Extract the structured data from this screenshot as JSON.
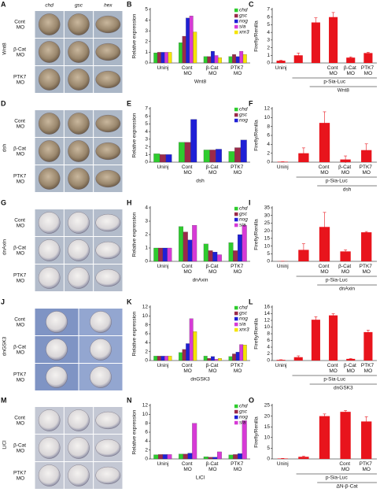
{
  "panels": [
    {
      "letter": "A",
      "side_label": "Wnt8",
      "columns": [
        "chd",
        "gsc",
        "hex"
      ],
      "rows": [
        "Cont MO",
        "β-Cat MO",
        "PTK7 MO"
      ]
    },
    {
      "letter": "D",
      "side_label": "dsh",
      "rows": [
        "Cont MO",
        "β-Cat MO",
        "PTK7 MO"
      ]
    },
    {
      "letter": "G",
      "side_label": "dnAxin",
      "rows": [
        "Cont MO",
        "β-Cat MO",
        "PTK7 MO"
      ]
    },
    {
      "letter": "J",
      "side_label": "dnGSK3",
      "rows": [
        "Cont MO",
        "β-Cat MO",
        "PTK7 MO"
      ]
    },
    {
      "letter": "M",
      "side_label": "LiCl",
      "rows": [
        "Cont MO",
        "β-Cat MO",
        "PTK7 MO"
      ]
    }
  ],
  "chart_data": [
    {
      "type": "bar",
      "title": "B",
      "ylabel": "Relative expression",
      "xlabel": "Wnt8",
      "categories": [
        "Uninj",
        "Cont MO",
        "β-Cat MO",
        "PTK7 MO"
      ],
      "series": [
        {
          "name": "chd",
          "color": "#2ecc2e",
          "values": [
            0.95,
            1.9,
            0.6,
            0.6
          ]
        },
        {
          "name": "gsc",
          "color": "#9b2a4a",
          "values": [
            1.0,
            2.5,
            0.6,
            0.8
          ]
        },
        {
          "name": "nog",
          "color": "#1f1fd6",
          "values": [
            1.0,
            4.2,
            1.1,
            0.6
          ]
        },
        {
          "name": "sia",
          "color": "#d63ad6",
          "values": [
            1.0,
            4.4,
            0.7,
            1.1
          ]
        },
        {
          "name": "xnr3",
          "color": "#f5e400",
          "values": [
            1.0,
            2.9,
            0.5,
            0.8
          ]
        }
      ],
      "ylim": [
        0,
        5
      ],
      "yticks": [
        0,
        1,
        2,
        3,
        4,
        5
      ]
    },
    {
      "type": "bar",
      "title": "C",
      "ylabel": "Firefly/Renilla",
      "categories": [
        "Uninj",
        null,
        null,
        "Cont MO",
        "β-Cat MO",
        "PTK7 MO"
      ],
      "values": [
        0.3,
        1.0,
        5.3,
        6.0,
        0.7,
        1.3
      ],
      "errors": [
        0.05,
        0.3,
        0.6,
        0.6,
        0.1,
        0.1
      ],
      "color": "#e8141c",
      "x_annotations": [
        "p-Sia-Luc",
        "Wnt8"
      ],
      "ylim": [
        0,
        7
      ],
      "yticks": [
        0,
        1,
        2,
        3,
        4,
        5,
        6,
        7
      ]
    },
    {
      "type": "bar",
      "title": "E",
      "ylabel": "Relative expression",
      "xlabel": "dsh",
      "categories": [
        "Uninj",
        "Cont MO",
        "β-Cat MO",
        "PTK7 MO"
      ],
      "series": [
        {
          "name": "chd",
          "color": "#2ecc2e",
          "values": [
            1.1,
            2.6,
            1.6,
            1.4
          ]
        },
        {
          "name": "gsc",
          "color": "#9b2a4a",
          "values": [
            1.0,
            2.6,
            1.6,
            1.9
          ]
        },
        {
          "name": "nog",
          "color": "#1f1fd6",
          "values": [
            1.0,
            5.6,
            1.7,
            2.9
          ]
        }
      ],
      "ylim": [
        0,
        7
      ],
      "yticks": [
        0,
        1,
        2,
        3,
        4,
        5,
        6,
        7
      ]
    },
    {
      "type": "bar",
      "title": "F",
      "ylabel": "Firefly/Renilla",
      "categories": [
        "Uninj",
        null,
        "Cont MO",
        "β-Cat MO",
        "PTK7 MO"
      ],
      "values": [
        0.1,
        2.0,
        8.8,
        0.6,
        2.7
      ],
      "errors": [
        0,
        1.2,
        2.5,
        0.8,
        1.4
      ],
      "color": "#e8141c",
      "x_annotations": [
        "p-Sia-Luc",
        "dsh"
      ],
      "ylim": [
        0,
        12
      ],
      "yticks": [
        0,
        2,
        4,
        6,
        8,
        10,
        12
      ]
    },
    {
      "type": "bar",
      "title": "H",
      "ylabel": "Relative expression",
      "xlabel": "dnAxin",
      "categories": [
        "Uninj",
        "Cont MO",
        "β-Cat MO",
        "PTK7 MO"
      ],
      "series": [
        {
          "name": "chd",
          "color": "#2ecc2e",
          "values": [
            1.0,
            2.6,
            1.3,
            1.4
          ]
        },
        {
          "name": "gsc",
          "color": "#9b2a4a",
          "values": [
            1.0,
            2.2,
            0.8,
            0.8
          ]
        },
        {
          "name": "nog",
          "color": "#1f1fd6",
          "values": [
            1.0,
            1.6,
            0.7,
            2.0
          ]
        },
        {
          "name": "sia",
          "color": "#d63ad6",
          "values": [
            1.0,
            2.7,
            0.5,
            2.7
          ]
        }
      ],
      "ylim": [
        0,
        4
      ],
      "yticks": [
        0,
        1,
        2,
        3,
        4
      ]
    },
    {
      "type": "bar",
      "title": "I",
      "ylabel": "Firefly/Renilla",
      "categories": [
        "Uninj",
        null,
        "Cont MO",
        "β-Cat MO",
        "PTK7 MO"
      ],
      "values": [
        0.1,
        7.5,
        22.5,
        6.5,
        19
      ],
      "errors": [
        0,
        4,
        9.5,
        1,
        0.5
      ],
      "color": "#e8141c",
      "x_annotations": [
        "p-Sia-Luc",
        "dnAxin"
      ],
      "ylim": [
        0,
        35
      ],
      "yticks": [
        0,
        5,
        10,
        15,
        20,
        25,
        30,
        35
      ]
    },
    {
      "type": "bar",
      "title": "K",
      "ylabel": "Relative expression",
      "xlabel": "dnGSK3",
      "categories": [
        "Uninj",
        "Cont MO",
        "β-Cat MO",
        "PTK7 MO"
      ],
      "series": [
        {
          "name": "chd",
          "color": "#2ecc2e",
          "values": [
            1.0,
            1.8,
            1.0,
            0.9
          ]
        },
        {
          "name": "gsc",
          "color": "#9b2a4a",
          "values": [
            1.0,
            2.5,
            0.5,
            1.5
          ]
        },
        {
          "name": "nog",
          "color": "#1f1fd6",
          "values": [
            1.0,
            3.8,
            0.9,
            1.9
          ]
        },
        {
          "name": "sia",
          "color": "#d63ad6",
          "values": [
            1.0,
            9.4,
            0.3,
            3.6
          ]
        },
        {
          "name": "xnr3",
          "color": "#f5e400",
          "values": [
            1.0,
            6.5,
            0.5,
            3.5
          ]
        }
      ],
      "ylim": [
        0,
        12
      ],
      "yticks": [
        0,
        2,
        4,
        6,
        8,
        10,
        12
      ]
    },
    {
      "type": "bar",
      "title": "L",
      "ylabel": "Firefly/Renilla",
      "categories": [
        "Uninj",
        null,
        null,
        "Cont MO",
        "β-Cat MO",
        "PTK7 MO"
      ],
      "values": [
        0.2,
        1.0,
        12.2,
        13.5,
        0.5,
        8.5
      ],
      "errors": [
        0.05,
        0.4,
        0.9,
        0.5,
        0.1,
        0.6
      ],
      "color": "#e8141c",
      "x_annotations": [
        "p-Sia-Luc",
        "dnGSK3"
      ],
      "ylim": [
        0,
        16
      ],
      "yticks": [
        0,
        2,
        4,
        6,
        8,
        10,
        12,
        14,
        16
      ]
    },
    {
      "type": "bar",
      "title": "N",
      "ylabel": "Relative expression",
      "xlabel": "LiCl",
      "categories": [
        "Uninj",
        "Cont MO",
        "β-Cat MO",
        "PTK7 MO"
      ],
      "series": [
        {
          "name": "chd",
          "color": "#2ecc2e",
          "values": [
            0.95,
            1.1,
            0.5,
            0.9
          ]
        },
        {
          "name": "gsc",
          "color": "#9b2a4a",
          "values": [
            1.0,
            1.1,
            0.4,
            1.0
          ]
        },
        {
          "name": "nog",
          "color": "#1f1fd6",
          "values": [
            1.0,
            1.3,
            0.4,
            1.2
          ]
        },
        {
          "name": "sia",
          "color": "#d63ad6",
          "values": [
            1.0,
            8.0,
            1.6,
            8.6
          ]
        }
      ],
      "ylim": [
        0,
        12
      ],
      "yticks": [
        0,
        2,
        4,
        6,
        8,
        10,
        12
      ]
    },
    {
      "type": "bar",
      "title": "O",
      "ylabel": "Firefly/Renilla",
      "categories": [
        "Uninj",
        null,
        null,
        "Cont MO",
        "PTK7 MO"
      ],
      "values": [
        0.2,
        1.0,
        20,
        22,
        17.5
      ],
      "errors": [
        0.05,
        0.3,
        1,
        0.6,
        2.2
      ],
      "color": "#e8141c",
      "x_annotations": [
        "p-Sia-Luc",
        "ΔN-β-Cat"
      ],
      "ylim": [
        0,
        25
      ],
      "yticks": [
        0,
        5,
        10,
        15,
        20,
        25
      ]
    }
  ]
}
